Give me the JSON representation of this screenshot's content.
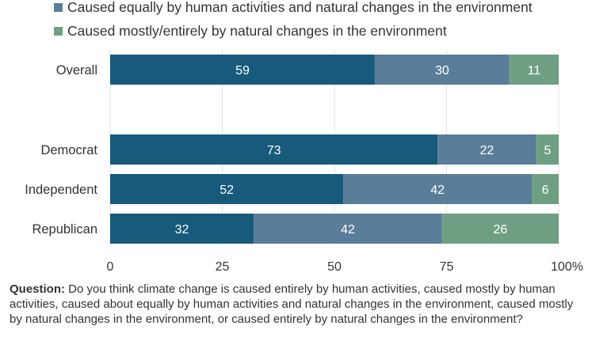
{
  "legend": [
    {
      "label": "Caused equally by human activities and natural changes in the environment",
      "color": "#5a7d99"
    },
    {
      "label": "Caused mostly/entirely by natural changes in the environment",
      "color": "#6e9f83"
    }
  ],
  "chart_data": {
    "type": "bar",
    "orientation": "horizontal",
    "stacked": true,
    "categories": [
      "Overall",
      "Democrat",
      "Independent",
      "Republican"
    ],
    "series": [
      {
        "values": [
          59,
          73,
          52,
          32
        ],
        "color": "#175a7c"
      },
      {
        "name": "Caused equally by human activities and natural changes in the environment",
        "values": [
          30,
          22,
          42,
          42
        ],
        "color": "#5a7d99"
      },
      {
        "name": "Caused mostly/entirely by natural changes in the environment",
        "values": [
          11,
          5,
          6,
          26
        ],
        "color": "#6e9f83"
      }
    ],
    "x_ticks": [
      "0",
      "25",
      "50",
      "75",
      "100%"
    ],
    "xlim": [
      0,
      100
    ],
    "grid": true
  },
  "question": {
    "label": "Question:",
    "text": " Do you think climate change is caused entirely by human activities, caused mostly by human activities, caused about equally by human activities and natural changes in the environment, caused mostly by natural changes in the environment, or caused entirely by natural changes in the environment?"
  }
}
